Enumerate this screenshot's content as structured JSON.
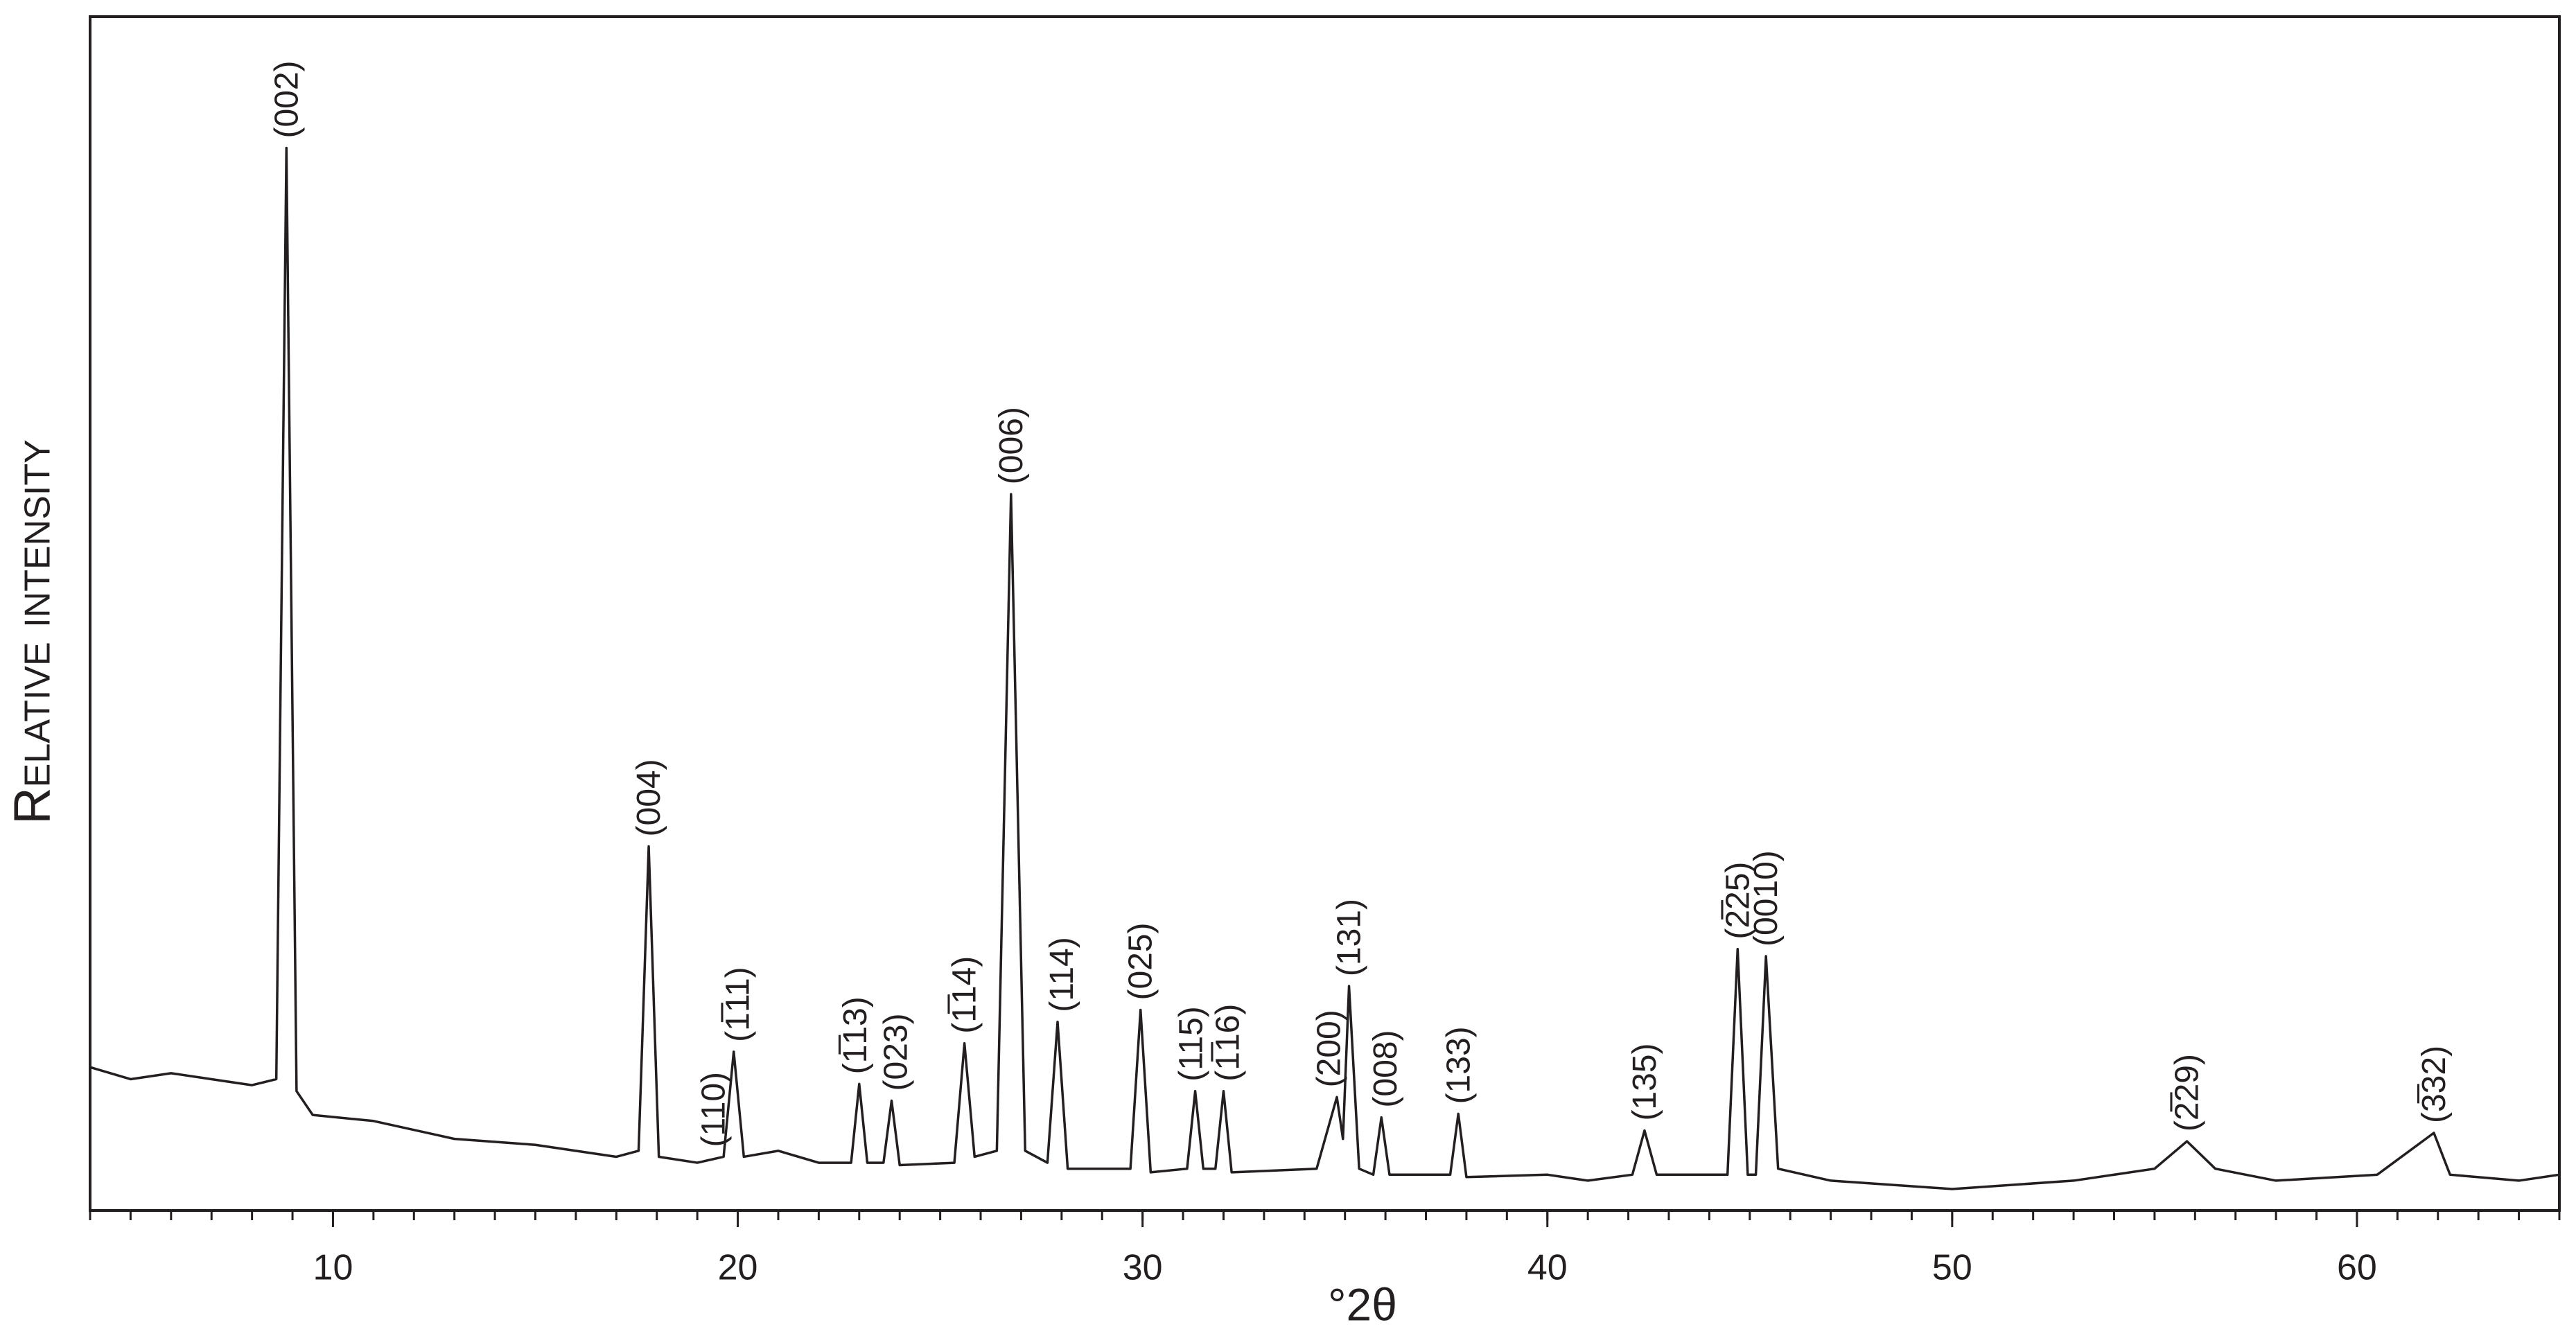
{
  "chart_data": {
    "type": "line",
    "x_label": "°2θ",
    "y_label": "Relative intensity",
    "xlim": [
      4,
      65
    ],
    "ylim": [
      0,
      100
    ],
    "xticks": [
      10,
      20,
      30,
      40,
      50,
      60
    ],
    "series": [
      {
        "color": "#231f20",
        "x": [
          4,
          5,
          6,
          7,
          8,
          8.6,
          8.85,
          9.1,
          9.5,
          11,
          13,
          15,
          17,
          17.55,
          17.8,
          18.05,
          19,
          19.65,
          19.9,
          20.15,
          21,
          22,
          22.8,
          23,
          23.2,
          23.6,
          23.8,
          24,
          25.35,
          25.6,
          25.85,
          26.4,
          26.75,
          27.1,
          27.65,
          27.9,
          28.15,
          29.7,
          29.95,
          30.2,
          31.1,
          31.3,
          31.5,
          31.8,
          32,
          32.2,
          34.3,
          34.8,
          34.95,
          35.1,
          35.35,
          35.7,
          35.9,
          36.1,
          37.6,
          37.8,
          38,
          40,
          41,
          42.1,
          42.4,
          42.7,
          44.45,
          44.7,
          44.95,
          45.15,
          45.4,
          45.7,
          47,
          50,
          53,
          55,
          55.8,
          56.5,
          58,
          60.5,
          61.9,
          62.3,
          64,
          65
        ],
        "values": [
          12,
          11,
          11.5,
          11,
          10.5,
          11,
          89,
          10,
          8,
          7.5,
          6,
          5.5,
          4.5,
          5,
          30.5,
          4.5,
          4,
          4.5,
          13.3,
          4.5,
          5,
          4,
          4,
          10.6,
          4,
          4,
          9.2,
          3.8,
          4,
          14,
          4.5,
          5,
          60,
          5,
          4,
          15.8,
          3.5,
          3.5,
          16.8,
          3.2,
          3.5,
          10,
          3.5,
          3.5,
          10,
          3.2,
          3.5,
          9.5,
          6,
          18.8,
          3.5,
          3,
          7.8,
          3,
          3,
          8.1,
          2.8,
          3,
          2.5,
          3,
          6.7,
          3,
          3,
          21.9,
          3,
          3,
          21.3,
          3.5,
          2.5,
          1.8,
          2.5,
          3.5,
          5.8,
          3.5,
          2.5,
          3,
          6.5,
          3,
          2.5,
          3
        ]
      }
    ],
    "annotations": [
      {
        "text": "(002)",
        "x": 8.85
      },
      {
        "text": "(004)",
        "x": 17.8
      },
      {
        "text": "(110)",
        "x": 19.4
      },
      {
        "text": "(1̅11)",
        "x": 20.0
      },
      {
        "text": "(1̅13)",
        "x": 22.9
      },
      {
        "text": "(023)",
        "x": 23.9
      },
      {
        "text": "(1̅14)",
        "x": 25.6
      },
      {
        "text": "(006)",
        "x": 26.75
      },
      {
        "text": "(114)",
        "x": 28.0
      },
      {
        "text": "(025)",
        "x": 29.95
      },
      {
        "text": "(115)",
        "x": 31.2
      },
      {
        "text": "(1̅16)",
        "x": 32.1
      },
      {
        "text": "(200)",
        "x": 34.6
      },
      {
        "text": "(131)",
        "x": 35.1
      },
      {
        "text": "(008)",
        "x": 36.0
      },
      {
        "text": "(133)",
        "x": 37.8
      },
      {
        "text": "(135)",
        "x": 42.4
      },
      {
        "text": "(2̅25)",
        "x": 44.7
      },
      {
        "text": "(0010)",
        "x": 45.4
      },
      {
        "text": "(2̅29)",
        "x": 55.8
      },
      {
        "text": "(3̅32)",
        "x": 61.9
      }
    ]
  }
}
